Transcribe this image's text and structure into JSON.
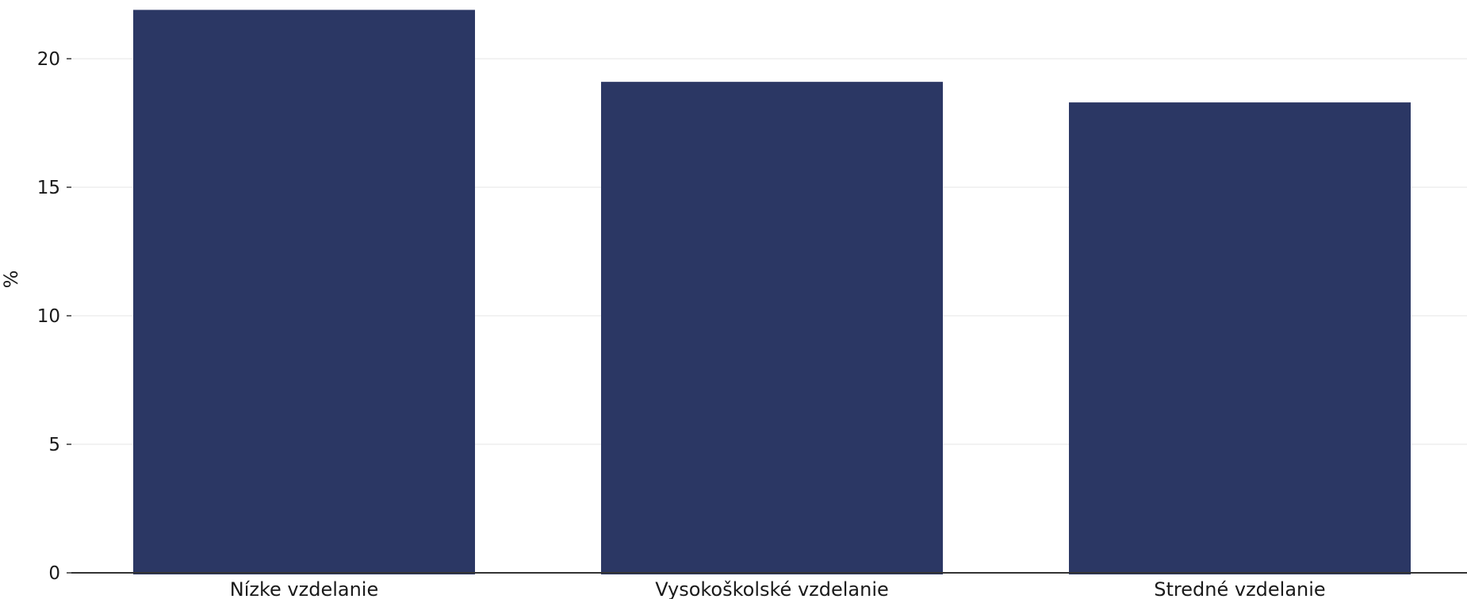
{
  "chart_data": {
    "type": "bar",
    "title": "",
    "xlabel": "",
    "ylabel": "%",
    "categories": [
      "Nízke vzdelanie",
      "Vysokoškolské vzdelanie",
      "Stredné vzdelanie"
    ],
    "values": [
      21.9,
      19.1,
      18.3
    ],
    "ylim": [
      0,
      22
    ],
    "yticks": [
      0,
      5,
      10,
      15,
      20
    ],
    "grid": true,
    "bar_color": "#2b3764"
  }
}
